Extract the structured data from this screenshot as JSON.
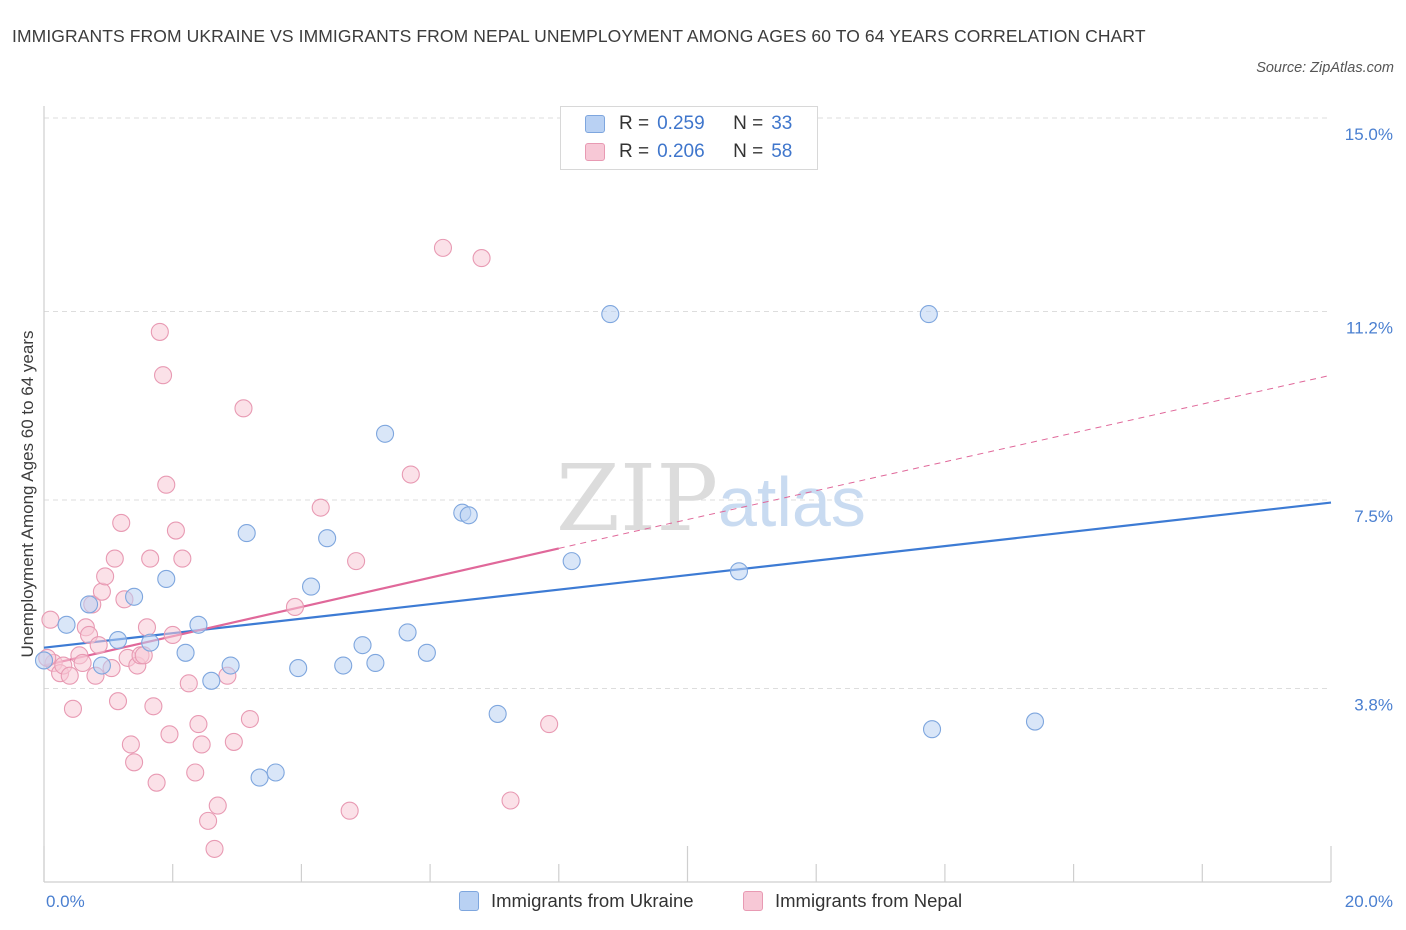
{
  "header": {
    "title": "IMMIGRANTS FROM UKRAINE VS IMMIGRANTS FROM NEPAL UNEMPLOYMENT AMONG AGES 60 TO 64 YEARS CORRELATION CHART",
    "source": "Source: ZipAtlas.com"
  },
  "watermark": {
    "zip": "ZIP",
    "atlas": "atlas"
  },
  "legend": {
    "r_label": "R =",
    "n_label": "N =",
    "items": [
      {
        "name": "Immigrants from Ukraine",
        "r": "0.259",
        "n": "33"
      },
      {
        "name": "Immigrants from Nepal",
        "r": "0.206",
        "n": "58"
      }
    ]
  },
  "colors": {
    "ukraine_fill": "#b9d1f3",
    "ukraine_stroke": "#7ea6de",
    "ukraine_line": "#3d7bd4",
    "nepal_fill": "#f7c8d6",
    "nepal_stroke": "#e89ab3",
    "nepal_line": "#e0689a",
    "tick_text": "#4a7fd0",
    "grid": "#dddddd"
  },
  "chart_data": {
    "type": "scatter",
    "title": "IMMIGRANTS FROM UKRAINE VS IMMIGRANTS FROM NEPAL UNEMPLOYMENT AMONG AGES 60 TO 64 YEARS CORRELATION CHART",
    "xlabel": "",
    "ylabel": "Unemployment Among Ages 60 to 64 years",
    "xlim": [
      0,
      20
    ],
    "ylim": [
      0,
      15
    ],
    "x_tick_labels": [
      {
        "value": 0,
        "label": "0.0%"
      },
      {
        "value": 20,
        "label": "20.0%"
      }
    ],
    "y_tick_labels": [
      {
        "value": 3.8,
        "label": "3.8%"
      },
      {
        "value": 7.5,
        "label": "7.5%"
      },
      {
        "value": 11.2,
        "label": "11.2%"
      },
      {
        "value": 15.0,
        "label": "15.0%"
      }
    ],
    "grid": true,
    "legend_position": "top-center",
    "series": [
      {
        "name": "Immigrants from Ukraine",
        "r": 0.259,
        "n": 33,
        "trend": {
          "x": [
            0,
            20
          ],
          "y": [
            4.6,
            7.45
          ],
          "extrapolated": false
        },
        "points": [
          [
            0.0,
            4.35
          ],
          [
            0.35,
            5.05
          ],
          [
            0.7,
            5.45
          ],
          [
            0.9,
            4.25
          ],
          [
            1.15,
            4.75
          ],
          [
            1.4,
            5.6
          ],
          [
            1.65,
            4.7
          ],
          [
            1.9,
            5.95
          ],
          [
            2.2,
            4.5
          ],
          [
            2.4,
            5.05
          ],
          [
            2.6,
            3.95
          ],
          [
            2.9,
            4.25
          ],
          [
            3.15,
            6.85
          ],
          [
            3.35,
            2.05
          ],
          [
            3.6,
            2.15
          ],
          [
            3.95,
            4.2
          ],
          [
            4.15,
            5.8
          ],
          [
            4.4,
            6.75
          ],
          [
            4.65,
            4.25
          ],
          [
            4.95,
            4.65
          ],
          [
            5.15,
            4.3
          ],
          [
            5.3,
            8.8
          ],
          [
            5.65,
            4.9
          ],
          [
            5.95,
            4.5
          ],
          [
            6.5,
            7.25
          ],
          [
            6.6,
            7.2
          ],
          [
            7.05,
            3.3
          ],
          [
            8.2,
            6.3
          ],
          [
            8.8,
            11.15
          ],
          [
            10.8,
            6.1
          ],
          [
            13.75,
            11.15
          ],
          [
            13.8,
            3.0
          ],
          [
            15.4,
            3.15
          ]
        ]
      },
      {
        "name": "Immigrants from Nepal",
        "r": 0.206,
        "n": 58,
        "trend": {
          "x": [
            0,
            8.0
          ],
          "y": [
            4.25,
            6.55
          ],
          "extrapolated": false
        },
        "trend_extrapolated": {
          "x": [
            8.0,
            20
          ],
          "y": [
            6.55,
            9.95
          ],
          "extrapolated": true
        },
        "points": [
          [
            0.1,
            5.15
          ],
          [
            0.15,
            4.3
          ],
          [
            0.25,
            4.1
          ],
          [
            0.3,
            4.25
          ],
          [
            0.4,
            4.05
          ],
          [
            0.45,
            3.4
          ],
          [
            0.55,
            4.45
          ],
          [
            0.6,
            4.3
          ],
          [
            0.65,
            5.0
          ],
          [
            0.7,
            4.85
          ],
          [
            0.75,
            5.45
          ],
          [
            0.8,
            4.05
          ],
          [
            0.85,
            4.65
          ],
          [
            0.9,
            5.7
          ],
          [
            0.95,
            6.0
          ],
          [
            1.05,
            4.2
          ],
          [
            1.1,
            6.35
          ],
          [
            1.15,
            3.55
          ],
          [
            1.2,
            7.05
          ],
          [
            1.25,
            5.55
          ],
          [
            1.3,
            4.4
          ],
          [
            1.35,
            2.7
          ],
          [
            1.4,
            2.35
          ],
          [
            1.45,
            4.25
          ],
          [
            1.5,
            4.45
          ],
          [
            1.55,
            4.45
          ],
          [
            1.6,
            5.0
          ],
          [
            1.65,
            6.35
          ],
          [
            1.7,
            3.45
          ],
          [
            1.75,
            1.95
          ],
          [
            1.8,
            10.8
          ],
          [
            1.85,
            9.95
          ],
          [
            1.9,
            7.8
          ],
          [
            1.95,
            2.9
          ],
          [
            2.0,
            4.85
          ],
          [
            2.05,
            6.9
          ],
          [
            2.15,
            6.35
          ],
          [
            2.25,
            3.9
          ],
          [
            2.35,
            2.15
          ],
          [
            2.4,
            3.1
          ],
          [
            2.45,
            2.7
          ],
          [
            2.55,
            1.2
          ],
          [
            2.65,
            0.65
          ],
          [
            2.7,
            1.5
          ],
          [
            2.85,
            4.05
          ],
          [
            2.95,
            2.75
          ],
          [
            3.1,
            9.3
          ],
          [
            3.2,
            3.2
          ],
          [
            3.9,
            5.4
          ],
          [
            4.3,
            7.35
          ],
          [
            4.75,
            1.4
          ],
          [
            4.85,
            6.3
          ],
          [
            5.7,
            8.0
          ],
          [
            6.2,
            12.45
          ],
          [
            6.8,
            12.25
          ],
          [
            7.25,
            1.6
          ],
          [
            7.85,
            3.1
          ],
          [
            0.05,
            4.4
          ]
        ]
      }
    ]
  }
}
